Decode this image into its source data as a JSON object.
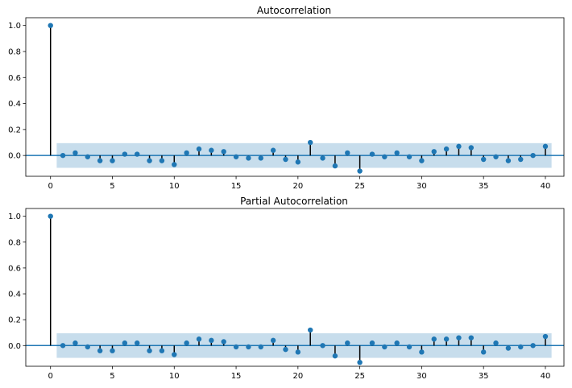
{
  "colors": {
    "marker": "#1f77b4",
    "stem": "#000000",
    "baseline": "#1f77b4",
    "confidence_band": "#1f77b4"
  },
  "chart_data": [
    {
      "type": "stem",
      "title": "Autocorrelation",
      "xlabel": "",
      "ylabel": "",
      "xlim": [
        -2,
        41.5
      ],
      "ylim": [
        -0.16,
        1.06
      ],
      "xticks": [
        0,
        5,
        10,
        15,
        20,
        25,
        30,
        35,
        40
      ],
      "yticks": [
        0.0,
        0.2,
        0.4,
        0.6,
        0.8,
        1.0
      ],
      "ytick_labels": [
        "0.0",
        "0.2",
        "0.4",
        "0.6",
        "0.8",
        "1.0"
      ],
      "confidence_interval": {
        "x_range": [
          0.5,
          40.5
        ],
        "lower": -0.095,
        "upper": 0.095
      },
      "lags": [
        0,
        1,
        2,
        3,
        4,
        5,
        6,
        7,
        8,
        9,
        10,
        11,
        12,
        13,
        14,
        15,
        16,
        17,
        18,
        19,
        20,
        21,
        22,
        23,
        24,
        25,
        26,
        27,
        28,
        29,
        30,
        31,
        32,
        33,
        34,
        35,
        36,
        37,
        38,
        39,
        40
      ],
      "values": [
        1.0,
        0.0,
        0.02,
        -0.01,
        -0.04,
        -0.04,
        0.01,
        0.01,
        -0.04,
        -0.04,
        -0.07,
        0.02,
        0.05,
        0.04,
        0.03,
        -0.01,
        -0.02,
        -0.02,
        0.04,
        -0.03,
        -0.05,
        0.1,
        -0.02,
        -0.08,
        0.02,
        -0.12,
        0.01,
        -0.01,
        0.02,
        -0.01,
        -0.04,
        0.03,
        0.05,
        0.07,
        0.06,
        -0.03,
        -0.01,
        -0.04,
        -0.03,
        0.0,
        0.07
      ]
    },
    {
      "type": "stem",
      "title": "Partial Autocorrelation",
      "xlabel": "",
      "ylabel": "",
      "xlim": [
        -2,
        41.5
      ],
      "ylim": [
        -0.16,
        1.06
      ],
      "xticks": [
        0,
        5,
        10,
        15,
        20,
        25,
        30,
        35,
        40
      ],
      "yticks": [
        0.0,
        0.2,
        0.4,
        0.6,
        0.8,
        1.0
      ],
      "ytick_labels": [
        "0.0",
        "0.2",
        "0.4",
        "0.6",
        "0.8",
        "1.0"
      ],
      "confidence_interval": {
        "x_range": [
          0.5,
          40.5
        ],
        "lower": -0.095,
        "upper": 0.095
      },
      "lags": [
        0,
        1,
        2,
        3,
        4,
        5,
        6,
        7,
        8,
        9,
        10,
        11,
        12,
        13,
        14,
        15,
        16,
        17,
        18,
        19,
        20,
        21,
        22,
        23,
        24,
        25,
        26,
        27,
        28,
        29,
        30,
        31,
        32,
        33,
        34,
        35,
        36,
        37,
        38,
        39,
        40
      ],
      "values": [
        1.0,
        0.0,
        0.02,
        -0.01,
        -0.04,
        -0.04,
        0.02,
        0.02,
        -0.04,
        -0.04,
        -0.07,
        0.02,
        0.05,
        0.04,
        0.03,
        -0.01,
        -0.01,
        -0.01,
        0.04,
        -0.03,
        -0.05,
        0.12,
        0.0,
        -0.08,
        0.02,
        -0.13,
        0.02,
        -0.01,
        0.02,
        -0.01,
        -0.05,
        0.05,
        0.05,
        0.06,
        0.06,
        -0.05,
        0.02,
        -0.02,
        -0.01,
        0.0,
        0.07
      ]
    }
  ]
}
